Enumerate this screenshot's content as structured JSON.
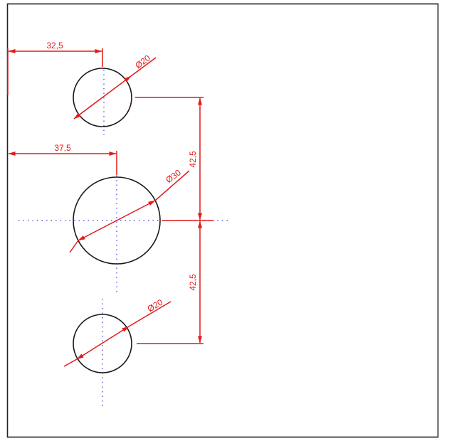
{
  "drawing": {
    "colors": {
      "dimension": "#e21a1a",
      "outline": "#1a1a1a",
      "centerline": "#3b3bd6"
    },
    "dimensions": {
      "top_horizontal": "32,5",
      "middle_horizontal": "37,5",
      "upper_vertical": "42,5",
      "lower_vertical": "42,5",
      "top_diameter": "Ø20",
      "middle_diameter": "Ø30",
      "bottom_diameter": "Ø20"
    }
  }
}
